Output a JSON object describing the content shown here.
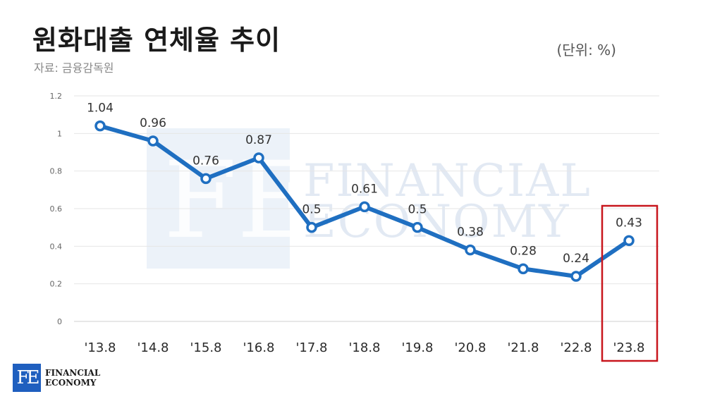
{
  "header": {
    "title": "원화대출 연체율 추이",
    "source": "자료: 금융감독원",
    "unit": "(단위: %)"
  },
  "watermark": {
    "mark": "FE",
    "line1": "FINANCIAL",
    "line2": "ECONOMY"
  },
  "logo": {
    "mark": "FE",
    "line1": "FINANCIAL",
    "line2": "ECONOMY"
  },
  "colors": {
    "line": "#1f6fc1",
    "highlight": "#c8161d",
    "logo": "#1f5fbf"
  },
  "chart_data": {
    "type": "line",
    "title": "원화대출 연체율 추이",
    "xlabel": "",
    "ylabel": "",
    "categories": [
      "'13.8",
      "'14.8",
      "'15.8",
      "'16.8",
      "'17.8",
      "'18.8",
      "'19.8",
      "'20.8",
      "'21.8",
      "'22.8",
      "'23.8"
    ],
    "series": [
      {
        "values": [
          1.04,
          0.96,
          0.76,
          0.87,
          0.5,
          0.61,
          0.5,
          0.38,
          0.28,
          0.24,
          0.43
        ]
      }
    ],
    "data_labels": [
      "1.04",
      "0.96",
      "0.76",
      "0.87",
      "0.5",
      "0.61",
      "0.5",
      "0.38",
      "0.28",
      "0.24",
      "0.43"
    ],
    "yticks": [
      "0",
      "0.2",
      "0.4",
      "0.6",
      "0.8",
      "1",
      "1.2"
    ],
    "ylim": [
      0,
      1.2
    ],
    "grid": true,
    "legend": "none",
    "highlight_category": "'23.8"
  }
}
